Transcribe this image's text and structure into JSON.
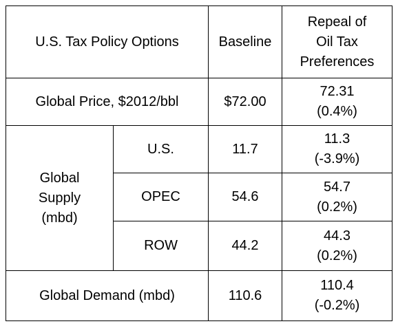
{
  "table": {
    "header": {
      "policy_options": "U.S. Tax Policy Options",
      "baseline": "Baseline",
      "repeal_line1": "Repeal of",
      "repeal_line2": "Oil Tax",
      "repeal_line3": "Preferences"
    },
    "global_price": {
      "label": "Global Price, $2012/bbl",
      "baseline": "$72.00",
      "repeal_value": "72.31",
      "repeal_change": "(0.4%)"
    },
    "global_supply": {
      "label_line1": "Global",
      "label_line2": "Supply",
      "label_line3": "(mbd)",
      "rows": [
        {
          "region": "U.S.",
          "baseline": "11.7",
          "repeal_value": "11.3",
          "repeal_change": "(-3.9%)"
        },
        {
          "region": "OPEC",
          "baseline": "54.6",
          "repeal_value": "54.7",
          "repeal_change": "(0.2%)"
        },
        {
          "region": "ROW",
          "baseline": "44.2",
          "repeal_value": "44.3",
          "repeal_change": "(0.2%)"
        }
      ]
    },
    "global_demand": {
      "label": "Global Demand (mbd)",
      "baseline": "110.6",
      "repeal_value": "110.4",
      "repeal_change": "(-0.2%)"
    }
  }
}
